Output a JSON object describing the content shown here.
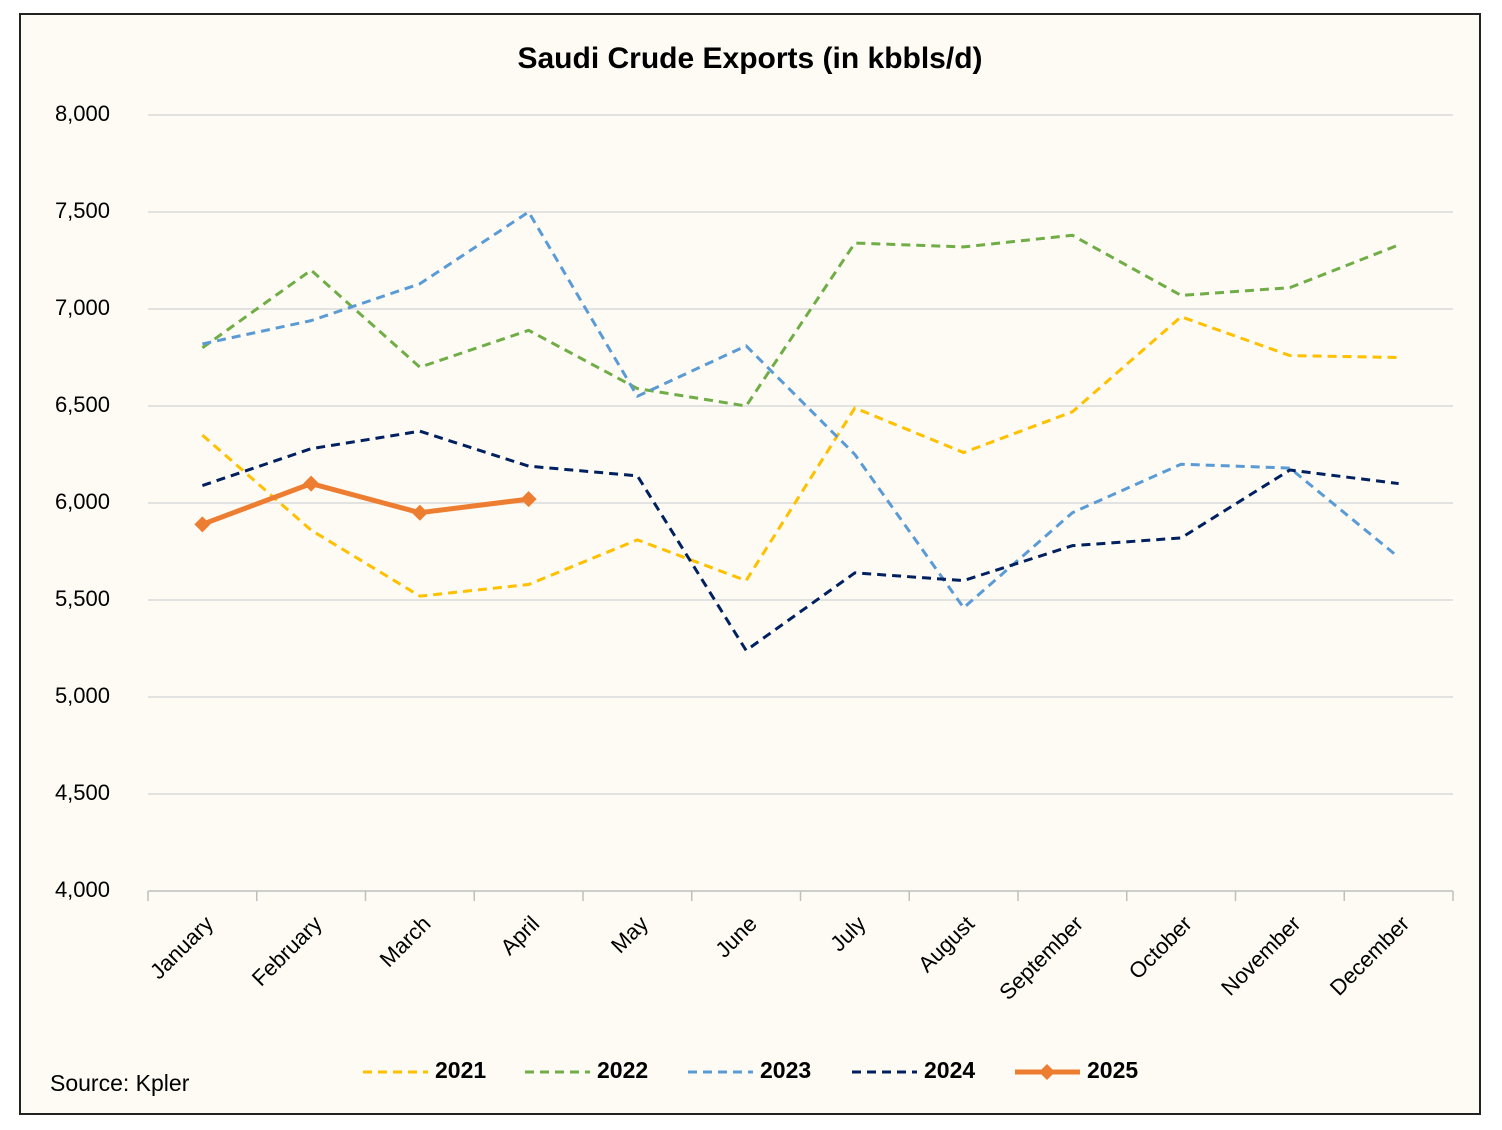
{
  "chart_data": {
    "type": "line",
    "title": "Saudi Crude Exports (in kbbls/d)",
    "source": "Source: Kpler",
    "categories": [
      "January",
      "February",
      "March",
      "April",
      "May",
      "June",
      "July",
      "August",
      "September",
      "October",
      "November",
      "December"
    ],
    "series": [
      {
        "name": "2021",
        "color": "#ffc000",
        "line_style": "dashed",
        "values": [
          6350,
          5860,
          5520,
          5580,
          5810,
          5600,
          6490,
          6260,
          6470,
          6960,
          6760,
          6750
        ]
      },
      {
        "name": "2022",
        "color": "#70ad47",
        "line_style": "dashed",
        "values": [
          6800,
          7200,
          6700,
          6890,
          6590,
          6500,
          7340,
          7320,
          7380,
          7070,
          7110,
          7330
        ]
      },
      {
        "name": "2023",
        "color": "#5b9bd5",
        "line_style": "dashed",
        "values": [
          6820,
          6940,
          7130,
          7500,
          6550,
          6810,
          6250,
          5460,
          5950,
          6200,
          6180,
          5720
        ]
      },
      {
        "name": "2024",
        "color": "#002060",
        "line_style": "dashed",
        "values": [
          6090,
          6280,
          6370,
          6190,
          6140,
          5240,
          5640,
          5600,
          5780,
          5820,
          6170,
          6100
        ]
      },
      {
        "name": "2025",
        "color": "#ed7d31",
        "line_style": "solid",
        "marker": "diamond",
        "values": [
          5890,
          6100,
          5950,
          6020,
          null,
          null,
          null,
          null,
          null,
          null,
          null,
          null
        ]
      }
    ],
    "ylim": [
      4000,
      8000
    ],
    "yticks": [
      {
        "value": 4000,
        "label": "4,000"
      },
      {
        "value": 4500,
        "label": "4,500"
      },
      {
        "value": 5000,
        "label": "5,000"
      },
      {
        "value": 5500,
        "label": "5,500"
      },
      {
        "value": 6000,
        "label": "6,000"
      },
      {
        "value": 6500,
        "label": "6,500"
      },
      {
        "value": 7000,
        "label": "7,000"
      },
      {
        "value": 7500,
        "label": "7,500"
      },
      {
        "value": 8000,
        "label": "8,000"
      }
    ],
    "grid": true,
    "legend": "bottom"
  }
}
